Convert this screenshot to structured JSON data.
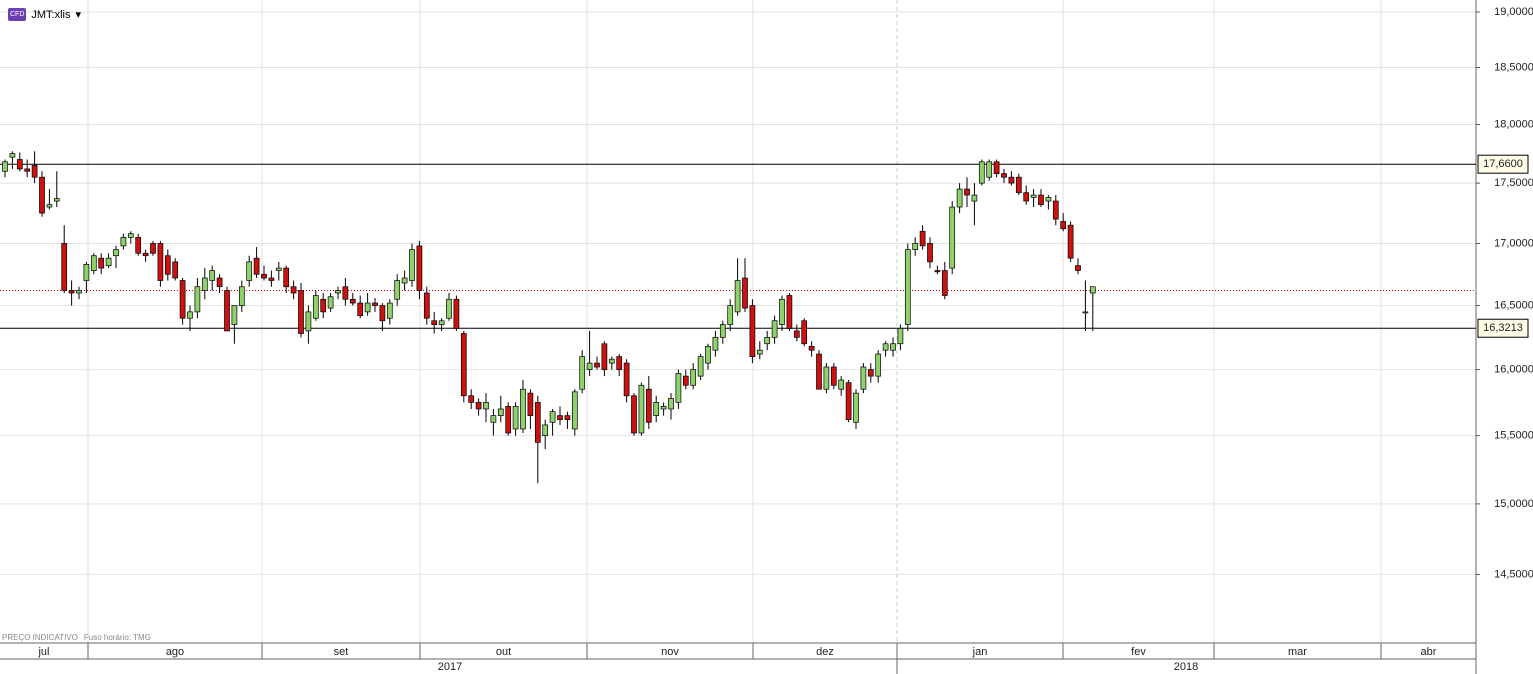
{
  "header": {
    "badge": "CFD",
    "symbol": "JMT:xlis",
    "note": "PREÇO INDICATIVO",
    "timezone": "Fuso horário: TMG"
  },
  "chart_data": {
    "type": "candlestick",
    "log_scale": true,
    "grid": true,
    "up_color": "#8fd16b",
    "down_color": "#cc1111",
    "ylim": [
      14.03,
      19.11
    ],
    "yticks": [
      {
        "value": 14.5,
        "label": "14,5000"
      },
      {
        "value": 15,
        "label": "15,0000"
      },
      {
        "value": 15.5,
        "label": "15,5000"
      },
      {
        "value": 16,
        "label": "16,0000"
      },
      {
        "value": 16.5,
        "label": "16,5000"
      },
      {
        "value": 17,
        "label": "17,0000"
      },
      {
        "value": 17.5,
        "label": "17,5000"
      },
      {
        "value": 18,
        "label": "18,0000"
      },
      {
        "value": 18.5,
        "label": "18,5000"
      },
      {
        "value": 19,
        "label": "19,0000"
      }
    ],
    "levels": [
      {
        "value": 17.66,
        "label": "17,6600"
      },
      {
        "value": 16.3213,
        "label": "16,3213"
      }
    ],
    "price_line": {
      "value": 16.62,
      "color": "#cc0000"
    },
    "months": [
      "jul",
      "ago",
      "set",
      "out",
      "nov",
      "dez",
      "jan",
      "fev",
      "mar",
      "abr"
    ],
    "years": [
      "2017",
      "2018"
    ],
    "candles": [
      [
        17.6,
        17.7,
        17.55,
        17.68
      ],
      [
        17.72,
        17.77,
        17.62,
        17.75
      ],
      [
        17.7,
        17.76,
        17.6,
        17.62
      ],
      [
        17.62,
        17.7,
        17.55,
        17.6
      ],
      [
        17.65,
        17.77,
        17.5,
        17.55
      ],
      [
        17.55,
        17.6,
        17.22,
        17.25
      ],
      [
        17.3,
        17.45,
        17.28,
        17.32
      ],
      [
        17.35,
        17.6,
        17.3,
        17.37
      ],
      [
        17.0,
        17.15,
        16.6,
        16.62
      ],
      [
        16.62,
        16.7,
        16.5,
        16.6
      ],
      [
        16.6,
        16.65,
        16.55,
        16.62
      ],
      [
        16.7,
        16.85,
        16.6,
        16.83
      ],
      [
        16.78,
        16.92,
        16.75,
        16.9
      ],
      [
        16.88,
        16.92,
        16.75,
        16.8
      ],
      [
        16.82,
        16.92,
        16.8,
        16.88
      ],
      [
        16.9,
        16.98,
        16.8,
        16.95
      ],
      [
        16.98,
        17.08,
        16.95,
        17.05
      ],
      [
        17.05,
        17.1,
        17.0,
        17.08
      ],
      [
        17.05,
        17.08,
        16.9,
        16.92
      ],
      [
        16.92,
        16.95,
        16.85,
        16.9
      ],
      [
        17.0,
        17.02,
        16.9,
        16.92
      ],
      [
        17.0,
        17.02,
        16.65,
        16.7
      ],
      [
        16.9,
        16.95,
        16.7,
        16.75
      ],
      [
        16.85,
        16.88,
        16.7,
        16.72
      ],
      [
        16.7,
        16.72,
        16.35,
        16.4
      ],
      [
        16.4,
        16.5,
        16.3,
        16.45
      ],
      [
        16.45,
        16.72,
        16.4,
        16.65
      ],
      [
        16.62,
        16.8,
        16.55,
        16.72
      ],
      [
        16.7,
        16.82,
        16.62,
        16.78
      ],
      [
        16.72,
        16.75,
        16.6,
        16.65
      ],
      [
        16.62,
        16.65,
        16.3,
        16.3
      ],
      [
        16.35,
        16.5,
        16.2,
        16.5
      ],
      [
        16.5,
        16.7,
        16.45,
        16.65
      ],
      [
        16.7,
        16.9,
        16.65,
        16.85
      ],
      [
        16.88,
        16.97,
        16.72,
        16.75
      ],
      [
        16.75,
        16.82,
        16.7,
        16.72
      ],
      [
        16.72,
        16.78,
        16.65,
        16.7
      ],
      [
        16.78,
        16.85,
        16.7,
        16.8
      ],
      [
        16.8,
        16.82,
        16.6,
        16.65
      ],
      [
        16.65,
        16.7,
        16.55,
        16.6
      ],
      [
        16.62,
        16.68,
        16.25,
        16.28
      ],
      [
        16.3,
        16.5,
        16.2,
        16.45
      ],
      [
        16.4,
        16.62,
        16.38,
        16.58
      ],
      [
        16.55,
        16.6,
        16.4,
        16.45
      ],
      [
        16.48,
        16.6,
        16.45,
        16.57
      ],
      [
        16.6,
        16.65,
        16.55,
        16.62
      ],
      [
        16.65,
        16.72,
        16.5,
        16.55
      ],
      [
        16.55,
        16.6,
        16.5,
        16.52
      ],
      [
        16.52,
        16.58,
        16.4,
        16.42
      ],
      [
        16.45,
        16.6,
        16.42,
        16.52
      ],
      [
        16.52,
        16.56,
        16.45,
        16.5
      ],
      [
        16.5,
        16.52,
        16.3,
        16.38
      ],
      [
        16.4,
        16.55,
        16.35,
        16.52
      ],
      [
        16.55,
        16.75,
        16.5,
        16.7
      ],
      [
        16.68,
        16.78,
        16.62,
        16.72
      ],
      [
        16.7,
        17.0,
        16.65,
        16.95
      ],
      [
        16.98,
        17.02,
        16.55,
        16.62
      ],
      [
        16.6,
        16.65,
        16.35,
        16.4
      ],
      [
        16.38,
        16.45,
        16.28,
        16.35
      ],
      [
        16.35,
        16.4,
        16.3,
        16.38
      ],
      [
        16.4,
        16.6,
        16.38,
        16.55
      ],
      [
        16.55,
        16.58,
        16.3,
        16.32
      ],
      [
        16.28,
        16.3,
        15.75,
        15.8
      ],
      [
        15.8,
        15.85,
        15.7,
        15.75
      ],
      [
        15.75,
        15.78,
        15.65,
        15.7
      ],
      [
        15.7,
        15.82,
        15.6,
        15.75
      ],
      [
        15.6,
        15.7,
        15.5,
        15.65
      ],
      [
        15.65,
        15.8,
        15.6,
        15.7
      ],
      [
        15.72,
        15.75,
        15.5,
        15.52
      ],
      [
        15.55,
        15.75,
        15.5,
        15.72
      ],
      [
        15.55,
        15.92,
        15.52,
        15.85
      ],
      [
        15.82,
        15.85,
        15.55,
        15.65
      ],
      [
        15.75,
        15.8,
        15.15,
        15.45
      ],
      [
        15.5,
        15.62,
        15.4,
        15.58
      ],
      [
        15.6,
        15.7,
        15.5,
        15.68
      ],
      [
        15.65,
        15.72,
        15.58,
        15.62
      ],
      [
        15.65,
        15.68,
        15.55,
        15.62
      ],
      [
        15.55,
        15.85,
        15.5,
        15.83
      ],
      [
        15.85,
        16.15,
        15.82,
        16.1
      ],
      [
        16.0,
        16.3,
        15.95,
        16.05
      ],
      [
        16.05,
        16.1,
        16.0,
        16.02
      ],
      [
        16.2,
        16.22,
        15.95,
        16.0
      ],
      [
        16.05,
        16.1,
        16.0,
        16.08
      ],
      [
        16.1,
        16.12,
        15.95,
        16.0
      ],
      [
        16.05,
        16.08,
        15.75,
        15.8
      ],
      [
        15.8,
        15.82,
        15.5,
        15.52
      ],
      [
        15.52,
        15.9,
        15.5,
        15.88
      ],
      [
        15.85,
        15.95,
        15.55,
        15.6
      ],
      [
        15.65,
        15.8,
        15.6,
        15.75
      ],
      [
        15.7,
        15.75,
        15.65,
        15.72
      ],
      [
        15.7,
        15.82,
        15.62,
        15.78
      ],
      [
        15.75,
        16.0,
        15.7,
        15.97
      ],
      [
        15.95,
        16.0,
        15.85,
        15.88
      ],
      [
        15.88,
        16.05,
        15.85,
        16.0
      ],
      [
        15.95,
        16.12,
        15.92,
        16.1
      ],
      [
        16.05,
        16.2,
        16.0,
        16.18
      ],
      [
        16.15,
        16.3,
        16.1,
        16.25
      ],
      [
        16.25,
        16.38,
        16.2,
        16.35
      ],
      [
        16.35,
        16.55,
        16.3,
        16.5
      ],
      [
        16.45,
        16.88,
        16.42,
        16.7
      ],
      [
        16.72,
        16.88,
        16.45,
        16.48
      ],
      [
        16.5,
        16.55,
        16.05,
        16.1
      ],
      [
        16.12,
        16.22,
        16.08,
        16.15
      ],
      [
        16.2,
        16.3,
        16.15,
        16.25
      ],
      [
        16.25,
        16.42,
        16.2,
        16.38
      ],
      [
        16.35,
        16.58,
        16.3,
        16.55
      ],
      [
        16.58,
        16.6,
        16.3,
        16.32
      ],
      [
        16.3,
        16.35,
        16.22,
        16.25
      ],
      [
        16.38,
        16.4,
        16.18,
        16.2
      ],
      [
        16.18,
        16.22,
        16.1,
        16.15
      ],
      [
        16.12,
        16.15,
        15.85,
        15.85
      ],
      [
        15.85,
        16.05,
        15.82,
        16.02
      ],
      [
        16.02,
        16.05,
        15.85,
        15.88
      ],
      [
        15.85,
        15.95,
        15.8,
        15.92
      ],
      [
        15.9,
        15.92,
        15.6,
        15.62
      ],
      [
        15.6,
        15.85,
        15.55,
        15.82
      ],
      [
        15.85,
        16.05,
        15.82,
        16.02
      ],
      [
        16.0,
        16.05,
        15.9,
        15.95
      ],
      [
        15.95,
        16.15,
        15.9,
        16.12
      ],
      [
        16.15,
        16.22,
        16.1,
        16.2
      ],
      [
        16.15,
        16.25,
        16.1,
        16.2
      ],
      [
        16.2,
        16.35,
        16.15,
        16.32
      ],
      [
        16.35,
        17.0,
        16.3,
        16.95
      ],
      [
        16.95,
        17.05,
        16.9,
        17.0
      ],
      [
        17.1,
        17.15,
        16.95,
        16.98
      ],
      [
        17.0,
        17.05,
        16.8,
        16.85
      ],
      [
        16.78,
        16.82,
        16.75,
        16.77
      ],
      [
        16.78,
        16.85,
        16.55,
        16.58
      ],
      [
        16.8,
        17.35,
        16.75,
        17.3
      ],
      [
        17.3,
        17.5,
        17.25,
        17.45
      ],
      [
        17.45,
        17.55,
        17.3,
        17.4
      ],
      [
        17.35,
        17.5,
        17.15,
        17.4
      ],
      [
        17.5,
        17.7,
        17.48,
        17.68
      ],
      [
        17.55,
        17.7,
        17.52,
        17.68
      ],
      [
        17.68,
        17.7,
        17.55,
        17.58
      ],
      [
        17.58,
        17.62,
        17.5,
        17.55
      ],
      [
        17.55,
        17.6,
        17.48,
        17.5
      ],
      [
        17.55,
        17.58,
        17.4,
        17.42
      ],
      [
        17.42,
        17.48,
        17.32,
        17.35
      ],
      [
        17.38,
        17.45,
        17.3,
        17.4
      ],
      [
        17.4,
        17.45,
        17.3,
        17.32
      ],
      [
        17.35,
        17.4,
        17.28,
        17.38
      ],
      [
        17.35,
        17.4,
        17.15,
        17.2
      ],
      [
        17.18,
        17.25,
        17.1,
        17.12
      ],
      [
        17.15,
        17.18,
        16.85,
        16.88
      ],
      [
        16.82,
        16.88,
        16.75,
        16.78
      ],
      [
        16.45,
        16.7,
        16.3,
        16.45
      ],
      [
        16.6,
        16.65,
        16.3,
        16.65
      ]
    ]
  }
}
